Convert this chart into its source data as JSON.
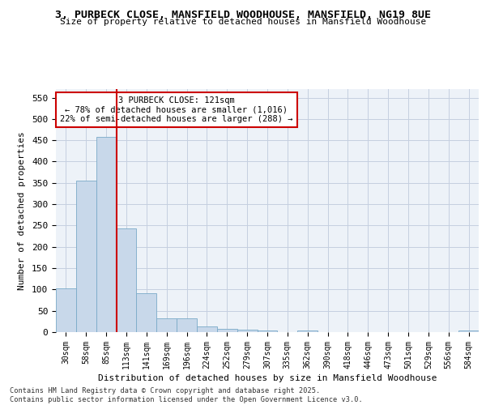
{
  "title_line1": "3, PURBECK CLOSE, MANSFIELD WOODHOUSE, MANSFIELD, NG19 8UE",
  "title_line2": "Size of property relative to detached houses in Mansfield Woodhouse",
  "xlabel": "Distribution of detached houses by size in Mansfield Woodhouse",
  "ylabel": "Number of detached properties",
  "categories": [
    "30sqm",
    "58sqm",
    "85sqm",
    "113sqm",
    "141sqm",
    "169sqm",
    "196sqm",
    "224sqm",
    "252sqm",
    "279sqm",
    "307sqm",
    "335sqm",
    "362sqm",
    "390sqm",
    "418sqm",
    "446sqm",
    "473sqm",
    "501sqm",
    "529sqm",
    "556sqm",
    "584sqm"
  ],
  "values": [
    103,
    356,
    457,
    243,
    91,
    32,
    32,
    13,
    8,
    5,
    3,
    0,
    3,
    0,
    0,
    0,
    0,
    0,
    0,
    0,
    3
  ],
  "bar_color": "#c8d8ea",
  "bar_edge_color": "#7aaac8",
  "marker_line_index": 3,
  "marker_label": "3 PURBECK CLOSE: 121sqm",
  "annotation_line1": "← 78% of detached houses are smaller (1,016)",
  "annotation_line2": "22% of semi-detached houses are larger (288) →",
  "annotation_box_color": "#ffffff",
  "annotation_box_edge": "#cc0000",
  "marker_line_color": "#cc0000",
  "ylim": [
    0,
    570
  ],
  "yticks": [
    0,
    50,
    100,
    150,
    200,
    250,
    300,
    350,
    400,
    450,
    500,
    550
  ],
  "footer_line1": "Contains HM Land Registry data © Crown copyright and database right 2025.",
  "footer_line2": "Contains public sector information licensed under the Open Government Licence v3.0.",
  "background_color": "#edf2f8",
  "grid_color": "#c5cfe0"
}
